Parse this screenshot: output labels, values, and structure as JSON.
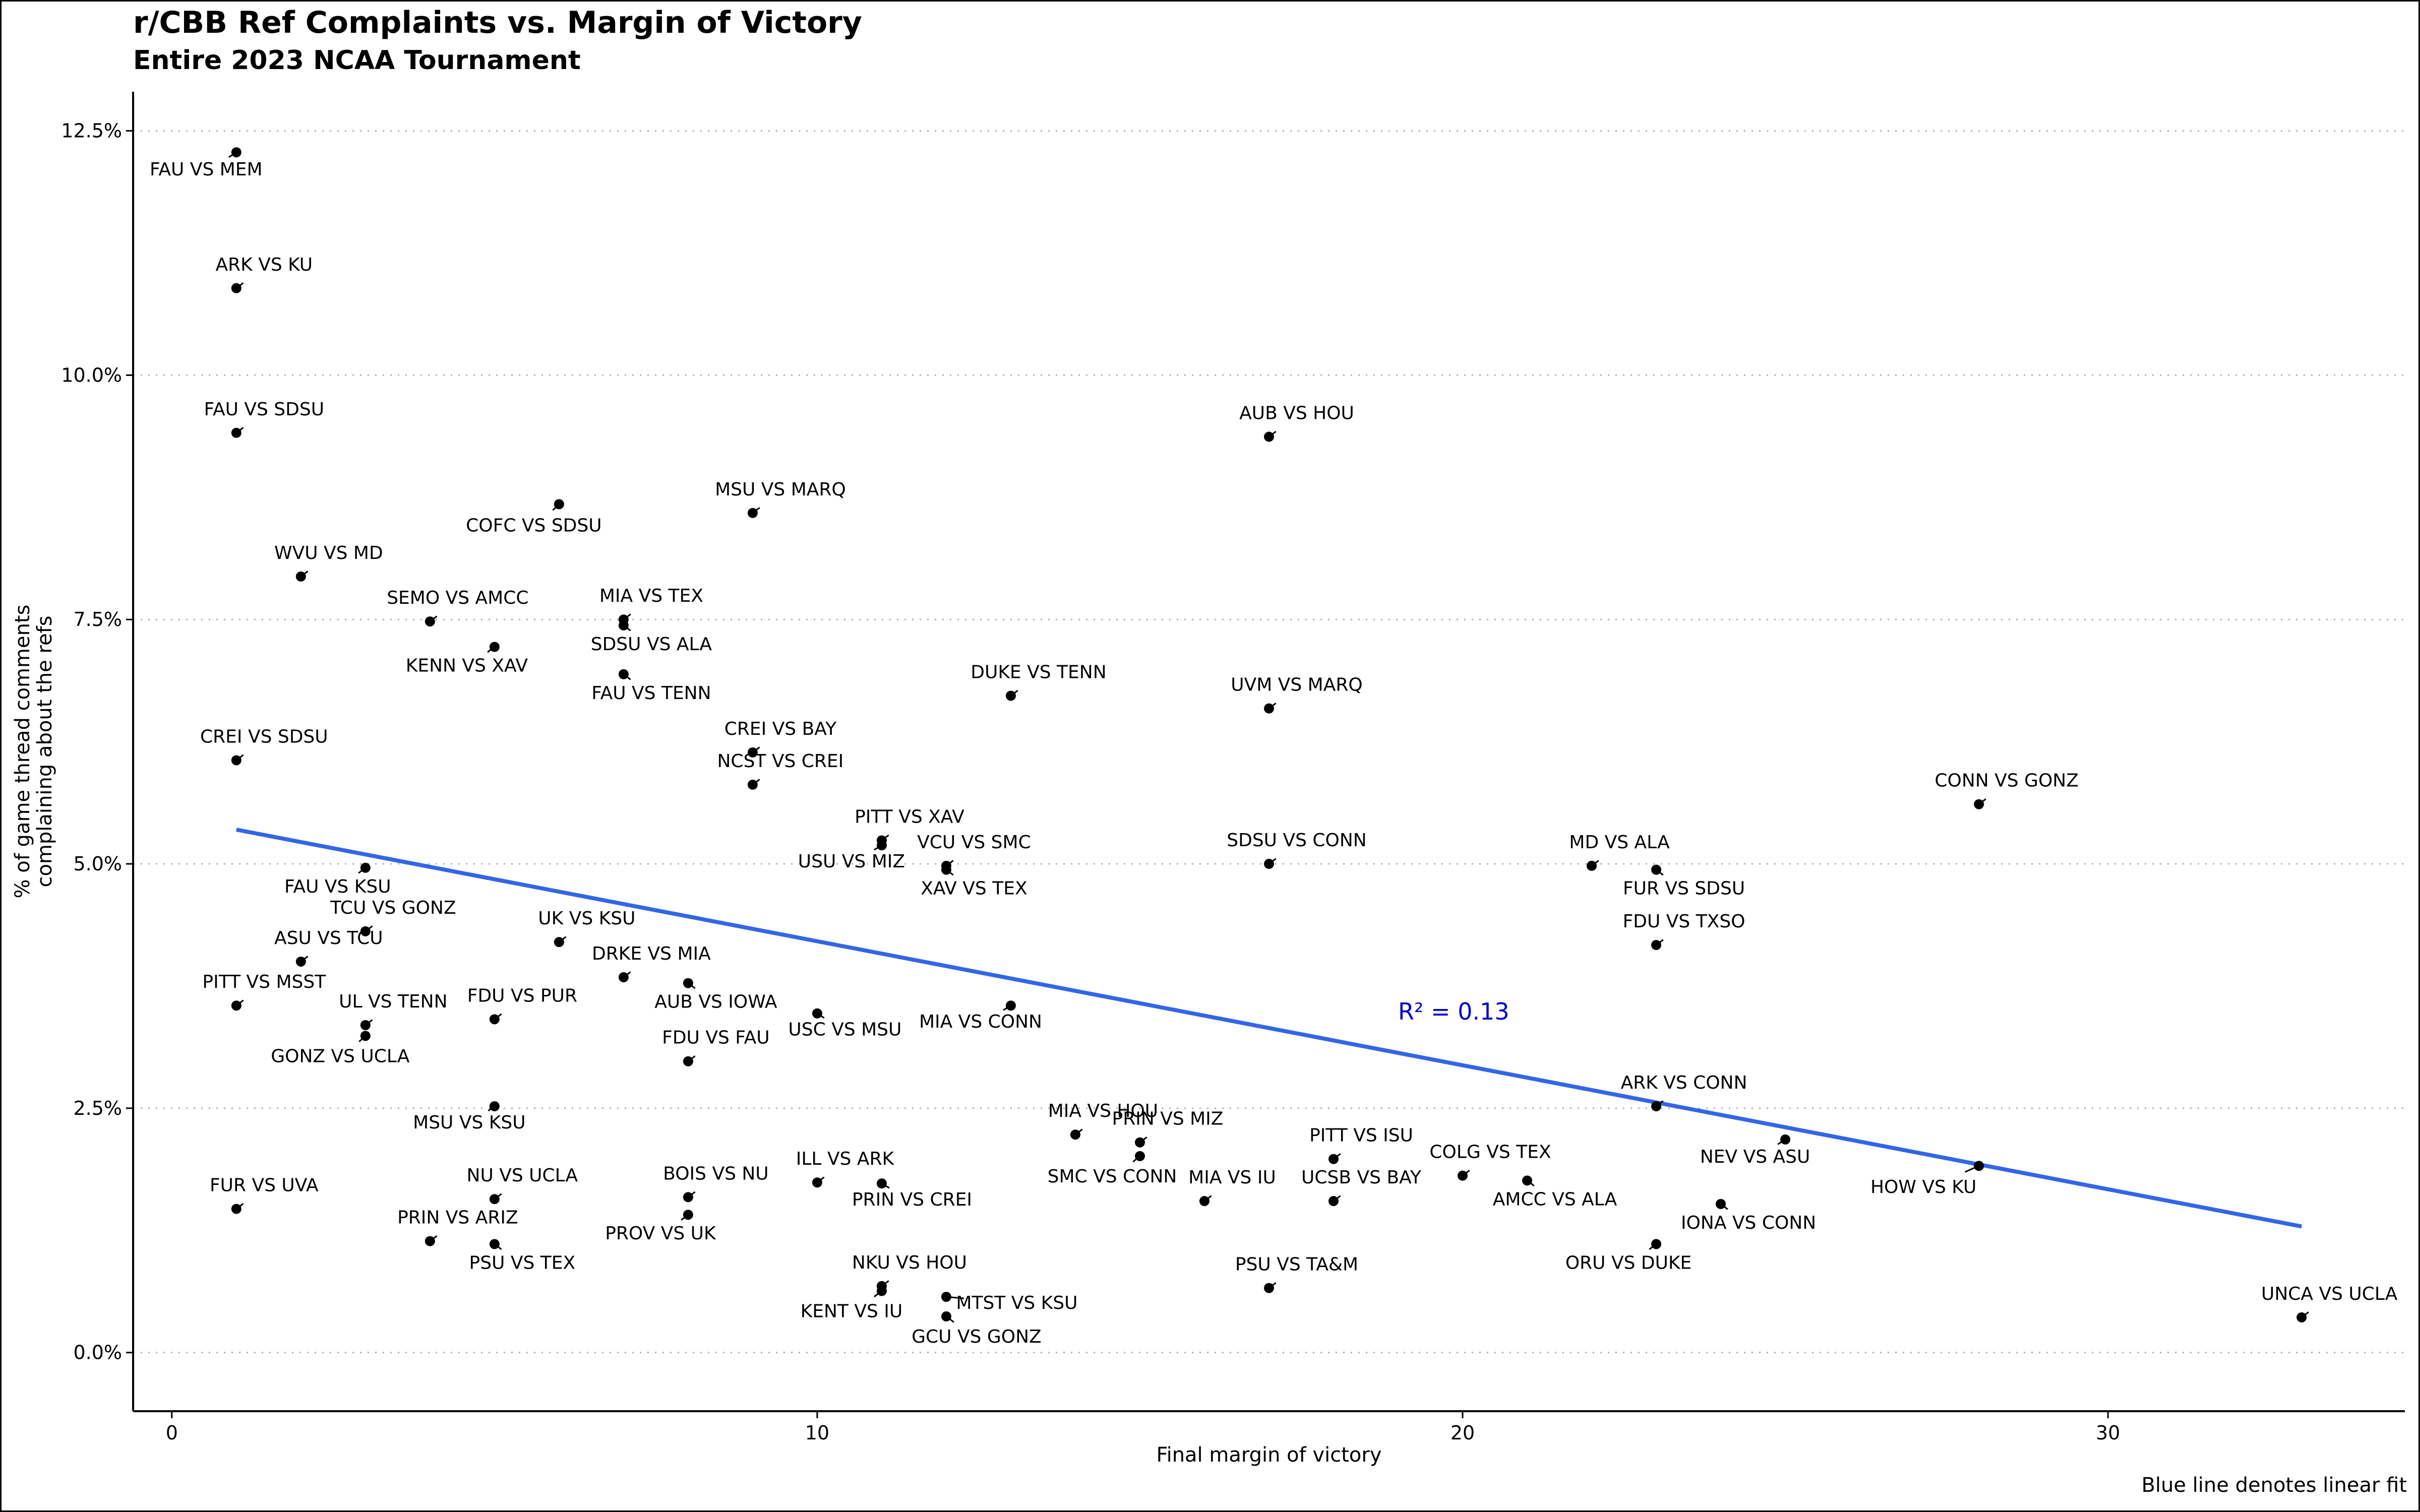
{
  "chart_data": {
    "type": "scatter",
    "title": "r/CBB Ref Complaints vs. Margin of Victory",
    "subtitle": "Entire 2023 NCAA Tournament",
    "xlabel": "Final margin of victory",
    "ylabel": [
      "% of game thread comments",
      "complaining about the refs"
    ],
    "caption": "Blue line denotes linear fit",
    "xlim": [
      -0.6,
      34.6
    ],
    "ylim": [
      -0.6,
      12.9
    ],
    "x_ticks": [
      0,
      10,
      20,
      30
    ],
    "x_tick_labels": [
      "0",
      "10",
      "20",
      "30"
    ],
    "y_ticks": [
      0,
      2.5,
      5,
      7.5,
      10,
      12.5
    ],
    "y_tick_labels": [
      "0.0%",
      "2.5%",
      "5.0%",
      "7.5%",
      "10.0%",
      "12.5%"
    ],
    "grid": "horizontal dotted",
    "fit": {
      "label": "R² = 0.13",
      "color": "#3366e6",
      "x": [
        1,
        33
      ],
      "y": [
        5.35,
        1.29
      ]
    },
    "annotation_color": "#0000cc",
    "points": [
      {
        "label": "FAU VS MEM",
        "x": 1,
        "y": 12.28
      },
      {
        "label": "ARK VS KU",
        "x": 1,
        "y": 10.89
      },
      {
        "label": "FAU VS SDSU",
        "x": 1,
        "y": 9.41
      },
      {
        "label": "WVU VS MD",
        "x": 2,
        "y": 7.94
      },
      {
        "label": "SEMO VS AMCC",
        "x": 4,
        "y": 7.48
      },
      {
        "label": "KENN VS XAV",
        "x": 5,
        "y": 7.22
      },
      {
        "label": "COFC VS SDSU",
        "x": 6,
        "y": 8.68
      },
      {
        "label": "MIA VS TEX",
        "x": 7,
        "y": 7.5
      },
      {
        "label": "SDSU VS ALA",
        "x": 7,
        "y": 7.44
      },
      {
        "label": "FAU VS TENN",
        "x": 7,
        "y": 6.94
      },
      {
        "label": "MSU VS MARQ",
        "x": 9,
        "y": 8.59
      },
      {
        "label": "CREI VS BAY",
        "x": 9,
        "y": 6.14
      },
      {
        "label": "NCST VS CREI",
        "x": 9,
        "y": 5.81
      },
      {
        "label": "CREI VS SDSU",
        "x": 1,
        "y": 6.06
      },
      {
        "label": "FAU VS KSU",
        "x": 3,
        "y": 4.96
      },
      {
        "label": "TCU VS GONZ",
        "x": 3,
        "y": 4.31
      },
      {
        "label": "ASU VS TCU",
        "x": 2,
        "y": 4.0
      },
      {
        "label": "UK VS KSU",
        "x": 6,
        "y": 4.2
      },
      {
        "label": "DRKE VS MIA",
        "x": 7,
        "y": 3.84
      },
      {
        "label": "AUB VS IOWA",
        "x": 8,
        "y": 3.78
      },
      {
        "label": "PITT VS MSST",
        "x": 1,
        "y": 3.55
      },
      {
        "label": "UL VS TENN",
        "x": 3,
        "y": 3.35
      },
      {
        "label": "GONZ VS UCLA",
        "x": 3,
        "y": 3.24
      },
      {
        "label": "FDU VS PUR",
        "x": 5,
        "y": 3.41
      },
      {
        "label": "USC VS MSU",
        "x": 10,
        "y": 3.47
      },
      {
        "label": "FDU VS FAU",
        "x": 8,
        "y": 2.98
      },
      {
        "label": "PITT VS XAV",
        "x": 11,
        "y": 5.24
      },
      {
        "label": "USU VS MIZ",
        "x": 11,
        "y": 5.19
      },
      {
        "label": "VCU VS SMC",
        "x": 12,
        "y": 4.98
      },
      {
        "label": "XAV VS TEX",
        "x": 12,
        "y": 4.94
      },
      {
        "label": "DUKE VS TENN",
        "x": 13,
        "y": 6.72
      },
      {
        "label": "MIA VS CONN",
        "x": 13,
        "y": 3.55
      },
      {
        "label": "AUB VS HOU",
        "x": 17,
        "y": 9.37
      },
      {
        "label": "UVM VS MARQ",
        "x": 17,
        "y": 6.59
      },
      {
        "label": "SDSU VS CONN",
        "x": 17,
        "y": 5.0
      },
      {
        "label": "MD VS ALA",
        "x": 22,
        "y": 4.98
      },
      {
        "label": "FUR VS SDSU",
        "x": 23,
        "y": 4.94
      },
      {
        "label": "FDU VS TXSO",
        "x": 23,
        "y": 4.17
      },
      {
        "label": "CONN VS GONZ",
        "x": 28,
        "y": 5.61
      },
      {
        "label": "MSU VS KSU",
        "x": 5,
        "y": 2.52
      },
      {
        "label": "FUR VS UVA",
        "x": 1,
        "y": 1.47
      },
      {
        "label": "NU VS UCLA",
        "x": 5,
        "y": 1.57
      },
      {
        "label": "PRIN VS ARIZ",
        "x": 4,
        "y": 1.14
      },
      {
        "label": "PSU VS TEX",
        "x": 5,
        "y": 1.11
      },
      {
        "label": "BOIS VS NU",
        "x": 8,
        "y": 1.59
      },
      {
        "label": "PROV VS UK",
        "x": 8,
        "y": 1.41
      },
      {
        "label": "ILL VS ARK",
        "x": 10,
        "y": 1.74
      },
      {
        "label": "PRIN VS CREI",
        "x": 11,
        "y": 1.73
      },
      {
        "label": "NKU VS HOU",
        "x": 11,
        "y": 0.68
      },
      {
        "label": "KENT VS IU",
        "x": 11,
        "y": 0.63
      },
      {
        "label": "MTST VS KSU",
        "x": 12,
        "y": 0.57
      },
      {
        "label": "GCU VS GONZ",
        "x": 12,
        "y": 0.37
      },
      {
        "label": "MIA VS HOU",
        "x": 14,
        "y": 2.23
      },
      {
        "label": "PRIN VS MIZ",
        "x": 15,
        "y": 2.15
      },
      {
        "label": "SMC VS CONN",
        "x": 15,
        "y": 2.01
      },
      {
        "label": "PITT VS ISU",
        "x": 18,
        "y": 1.98
      },
      {
        "label": "MIA VS IU",
        "x": 16,
        "y": 1.55
      },
      {
        "label": "UCSB VS BAY",
        "x": 18,
        "y": 1.55
      },
      {
        "label": "PSU VS TA&M",
        "x": 17,
        "y": 0.66
      },
      {
        "label": "COLG VS TEX",
        "x": 20,
        "y": 1.81
      },
      {
        "label": "AMCC VS ALA",
        "x": 21,
        "y": 1.76
      },
      {
        "label": "ARK VS CONN",
        "x": 23,
        "y": 2.52
      },
      {
        "label": "NEV VS ASU",
        "x": 25,
        "y": 2.18
      },
      {
        "label": "HOW VS KU",
        "x": 28,
        "y": 1.91
      },
      {
        "label": "IONA VS CONN",
        "x": 24,
        "y": 1.52
      },
      {
        "label": "ORU VS DUKE",
        "x": 23,
        "y": 1.11
      },
      {
        "label": "UNCA VS UCLA",
        "x": 33,
        "y": 0.36
      }
    ]
  }
}
